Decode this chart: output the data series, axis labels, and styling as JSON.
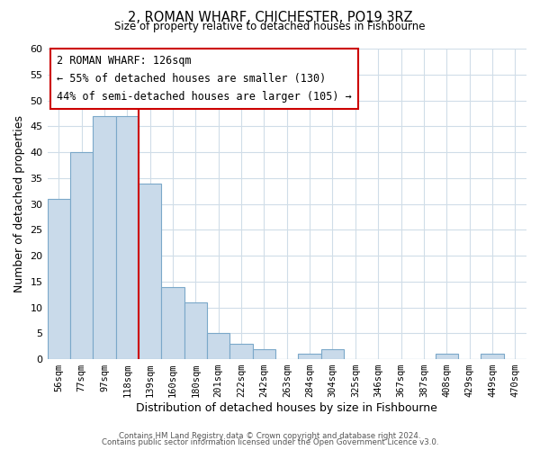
{
  "title": "2, ROMAN WHARF, CHICHESTER, PO19 3RZ",
  "subtitle": "Size of property relative to detached houses in Fishbourne",
  "xlabel": "Distribution of detached houses by size in Fishbourne",
  "ylabel": "Number of detached properties",
  "bar_labels": [
    "56sqm",
    "77sqm",
    "97sqm",
    "118sqm",
    "139sqm",
    "160sqm",
    "180sqm",
    "201sqm",
    "222sqm",
    "242sqm",
    "263sqm",
    "284sqm",
    "304sqm",
    "325sqm",
    "346sqm",
    "367sqm",
    "387sqm",
    "408sqm",
    "429sqm",
    "449sqm",
    "470sqm"
  ],
  "bar_values": [
    31,
    40,
    47,
    47,
    34,
    14,
    11,
    5,
    3,
    2,
    0,
    1,
    2,
    0,
    0,
    0,
    0,
    1,
    0,
    1,
    0
  ],
  "bar_color": "#c9daea",
  "bar_edge_color": "#7ba8c9",
  "vline_x": 3.5,
  "vline_color": "#cc0000",
  "annotation_title": "2 ROMAN WHARF: 126sqm",
  "annotation_line1": "← 55% of detached houses are smaller (130)",
  "annotation_line2": "44% of semi-detached houses are larger (105) →",
  "annotation_box_color": "#ffffff",
  "annotation_box_edge": "#cc0000",
  "ylim": [
    0,
    60
  ],
  "yticks": [
    0,
    5,
    10,
    15,
    20,
    25,
    30,
    35,
    40,
    45,
    50,
    55,
    60
  ],
  "footer1": "Contains HM Land Registry data © Crown copyright and database right 2024.",
  "footer2": "Contains public sector information licensed under the Open Government Licence v3.0.",
  "bg_color": "#ffffff",
  "grid_color": "#d0dde8"
}
